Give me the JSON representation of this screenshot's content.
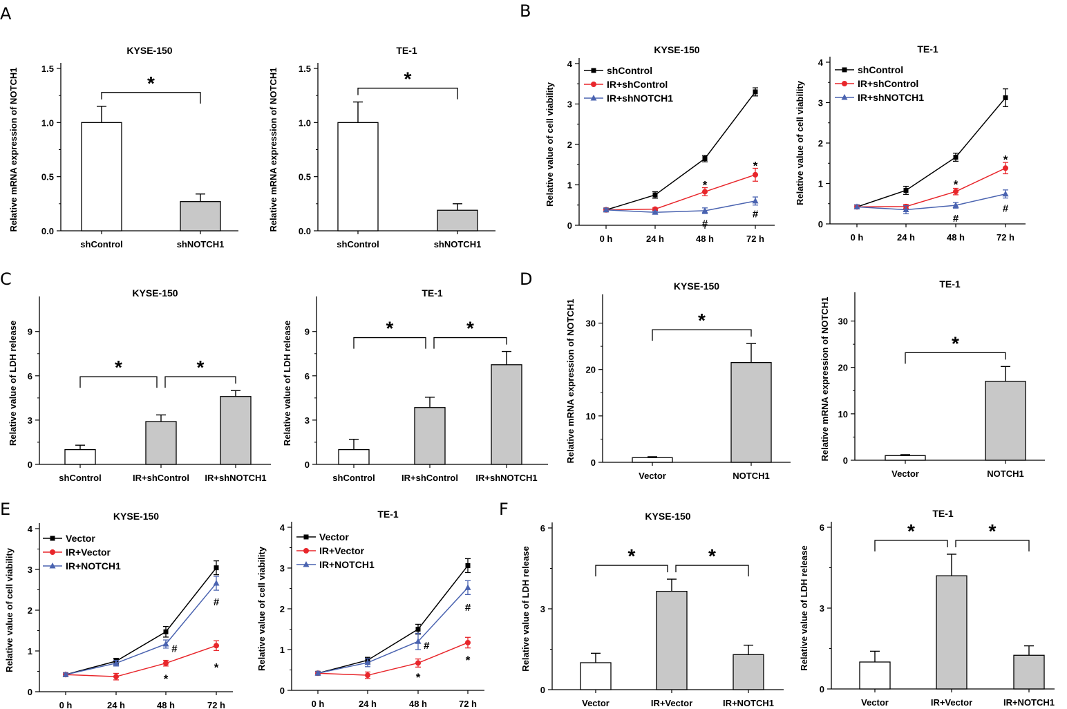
{
  "colors": {
    "black": "#000000",
    "red": "#e8262b",
    "blue": "#4a63b0",
    "gray_bar": "#c8c8c8",
    "white_bar": "#ffffff"
  },
  "panel_labels": [
    "A",
    "B",
    "C",
    "D",
    "E",
    "F"
  ],
  "chart_data": [
    {
      "id": "A1",
      "panel": "A",
      "type": "bar",
      "title": "KYSE-150",
      "ylabel": "Relative mRNA expression of NOTCH1",
      "categories": [
        "shControl",
        "shNOTCH1"
      ],
      "values": [
        1.0,
        0.27
      ],
      "errors": [
        0.15,
        0.07
      ],
      "fills": [
        "white",
        "gray"
      ],
      "ylim": [
        0,
        1.5
      ],
      "yticks": [
        0.0,
        0.5,
        1.0,
        1.5
      ],
      "ytick_labels": [
        "0.0",
        "0.5",
        "1.0",
        "1.5"
      ],
      "significance": [
        {
          "from": 0,
          "to": 1,
          "label": "*"
        }
      ]
    },
    {
      "id": "A2",
      "panel": "A",
      "type": "bar",
      "title": "TE-1",
      "ylabel": "Relative mRNA expression of NOTCH1",
      "categories": [
        "shControl",
        "shNOTCH1"
      ],
      "values": [
        1.0,
        0.19
      ],
      "errors": [
        0.19,
        0.06
      ],
      "fills": [
        "white",
        "gray"
      ],
      "ylim": [
        0,
        1.5
      ],
      "yticks": [
        0.0,
        0.5,
        1.0,
        1.5
      ],
      "ytick_labels": [
        "0.0",
        "0.5",
        "1.0",
        "1.5"
      ],
      "significance": [
        {
          "from": 0,
          "to": 1,
          "label": "*"
        }
      ]
    },
    {
      "id": "B1",
      "panel": "B",
      "type": "line",
      "title": "KYSE-150",
      "ylabel": "Relative value of cell viability",
      "categories": [
        "0 h",
        "24 h",
        "48 h",
        "72 h"
      ],
      "ylim": [
        0,
        4
      ],
      "yticks": [
        0,
        1,
        2,
        3,
        4
      ],
      "ytick_labels": [
        "0",
        "1",
        "2",
        "3",
        "4"
      ],
      "series": [
        {
          "name": "shControl",
          "color": "#000000",
          "marker": "square",
          "values": [
            0.38,
            0.75,
            1.65,
            3.3
          ],
          "errors": [
            0.04,
            0.08,
            0.08,
            0.1
          ]
        },
        {
          "name": "IR+shControl",
          "color": "#e8262b",
          "marker": "circle",
          "values": [
            0.38,
            0.4,
            0.83,
            1.25
          ],
          "errors": [
            0.04,
            0.03,
            0.1,
            0.16
          ]
        },
        {
          "name": "IR+shNOTCH1",
          "color": "#4a63b0",
          "marker": "triangle",
          "values": [
            0.38,
            0.32,
            0.36,
            0.6
          ],
          "errors": [
            0.04,
            0.03,
            0.07,
            0.1
          ]
        }
      ],
      "annotations": [
        {
          "label": "*",
          "x": 2,
          "y": 1.0
        },
        {
          "label": "*",
          "x": 3,
          "y": 1.48
        },
        {
          "label": "#",
          "x": 2,
          "y": 0.06
        },
        {
          "label": "#",
          "x": 3,
          "y": 0.3
        }
      ]
    },
    {
      "id": "B2",
      "panel": "B",
      "type": "line",
      "title": "TE-1",
      "ylabel": "Relative value of cell viability",
      "categories": [
        "0 h",
        "24 h",
        "48 h",
        "72 h"
      ],
      "ylim": [
        0,
        4
      ],
      "yticks": [
        0,
        1,
        2,
        3,
        4
      ],
      "ytick_labels": [
        "0",
        "1",
        "2",
        "3",
        "4"
      ],
      "series": [
        {
          "name": "shControl",
          "color": "#000000",
          "marker": "square",
          "values": [
            0.42,
            0.83,
            1.65,
            3.12
          ],
          "errors": [
            0.05,
            0.1,
            0.1,
            0.22
          ]
        },
        {
          "name": "IR+shControl",
          "color": "#e8262b",
          "marker": "circle",
          "values": [
            0.42,
            0.43,
            0.8,
            1.38
          ],
          "errors": [
            0.05,
            0.05,
            0.08,
            0.14
          ]
        },
        {
          "name": "IR+shNOTCH1",
          "color": "#4a63b0",
          "marker": "triangle",
          "values": [
            0.42,
            0.35,
            0.46,
            0.74
          ],
          "errors": [
            0.05,
            0.1,
            0.07,
            0.1
          ]
        }
      ],
      "annotations": [
        {
          "label": "*",
          "x": 2,
          "y": 0.98
        },
        {
          "label": "*",
          "x": 3,
          "y": 1.6
        },
        {
          "label": "#",
          "x": 2,
          "y": 0.15
        },
        {
          "label": "#",
          "x": 3,
          "y": 0.4
        }
      ]
    },
    {
      "id": "C1",
      "panel": "C",
      "type": "bar",
      "title": "KYSE-150",
      "ylabel": "Relative value of LDH release",
      "categories": [
        "shControl",
        "IR+shControl",
        "IR+shNOTCH1"
      ],
      "values": [
        1.0,
        2.9,
        4.6
      ],
      "errors": [
        0.3,
        0.45,
        0.4
      ],
      "fills": [
        "white",
        "gray",
        "gray"
      ],
      "ylim": [
        0,
        11
      ],
      "yticks": [
        0,
        3,
        6,
        9
      ],
      "ytick_labels": [
        "0",
        "3",
        "6",
        "9"
      ],
      "significance": [
        {
          "from": 0,
          "to": 1,
          "label": "*"
        },
        {
          "from": 1,
          "to": 2,
          "label": "*"
        }
      ]
    },
    {
      "id": "C2",
      "panel": "C",
      "type": "bar",
      "title": "TE-1",
      "ylabel": "Relative value of LDH release",
      "categories": [
        "shControl",
        "IR+shControl",
        "IR+shNOTCH1"
      ],
      "values": [
        1.0,
        3.85,
        6.75
      ],
      "errors": [
        0.7,
        0.7,
        0.9
      ],
      "fills": [
        "white",
        "gray",
        "gray"
      ],
      "ylim": [
        0,
        11
      ],
      "yticks": [
        0,
        3,
        6,
        9
      ],
      "ytick_labels": [
        "0",
        "3",
        "6",
        "9"
      ],
      "significance": [
        {
          "from": 0,
          "to": 1,
          "label": "*"
        },
        {
          "from": 1,
          "to": 2,
          "label": "*"
        }
      ]
    },
    {
      "id": "D1",
      "panel": "D",
      "type": "bar",
      "title": "KYSE-150",
      "ylabel": "Relative mRNA expression of NOTCH1",
      "categories": [
        "Vector",
        "NOTCH1"
      ],
      "values": [
        1.0,
        21.5
      ],
      "errors": [
        0.2,
        4.1
      ],
      "fills": [
        "white",
        "gray"
      ],
      "ylim": [
        0,
        35
      ],
      "yticks": [
        0,
        10,
        20,
        30
      ],
      "ytick_labels": [
        "0",
        "10",
        "20",
        "30"
      ],
      "significance": [
        {
          "from": 0,
          "to": 1,
          "label": "*"
        }
      ]
    },
    {
      "id": "D2",
      "panel": "D",
      "type": "bar",
      "title": "TE-1",
      "ylabel": "Relative mRNA expression of NOTCH1",
      "categories": [
        "Vector",
        "NOTCH1"
      ],
      "values": [
        1.0,
        17.0
      ],
      "errors": [
        0.2,
        3.2
      ],
      "fills": [
        "white",
        "gray"
      ],
      "ylim": [
        0,
        35
      ],
      "yticks": [
        0,
        10,
        20,
        30
      ],
      "ytick_labels": [
        "0",
        "10",
        "20",
        "30"
      ],
      "significance": [
        {
          "from": 0,
          "to": 1,
          "label": "*"
        }
      ]
    },
    {
      "id": "E1",
      "panel": "E",
      "type": "line",
      "title": "KYSE-150",
      "ylabel": "Relative value of cell viability",
      "categories": [
        "0 h",
        "24 h",
        "48 h",
        "72 h"
      ],
      "ylim": [
        0,
        4
      ],
      "yticks": [
        0,
        1,
        2,
        3,
        4
      ],
      "ytick_labels": [
        "0",
        "1",
        "2",
        "3",
        "4"
      ],
      "series": [
        {
          "name": "Vector",
          "color": "#000000",
          "marker": "square",
          "values": [
            0.42,
            0.75,
            1.47,
            3.04
          ],
          "errors": [
            0.04,
            0.07,
            0.13,
            0.17
          ]
        },
        {
          "name": "IR+Vector",
          "color": "#e8262b",
          "marker": "circle",
          "values": [
            0.42,
            0.37,
            0.7,
            1.13
          ],
          "errors": [
            0.04,
            0.08,
            0.07,
            0.12
          ]
        },
        {
          "name": "IR+NOTCH1",
          "color": "#4a63b0",
          "marker": "triangle",
          "values": [
            0.42,
            0.7,
            1.17,
            2.66
          ],
          "errors": [
            0.04,
            0.07,
            0.1,
            0.17
          ]
        }
      ],
      "annotations": [
        {
          "label": "#",
          "x": 2.17,
          "y": 1.08
        },
        {
          "label": "#",
          "x": 3,
          "y": 2.22
        },
        {
          "label": "*",
          "x": 2,
          "y": 0.32
        },
        {
          "label": "*",
          "x": 3,
          "y": 0.6
        }
      ]
    },
    {
      "id": "E2",
      "panel": "E",
      "type": "line",
      "title": "TE-1",
      "ylabel": "Relative value of cell viability",
      "categories": [
        "0 h",
        "24 h",
        "48 h",
        "72 h"
      ],
      "ylim": [
        0,
        4
      ],
      "yticks": [
        0,
        1,
        2,
        3,
        4
      ],
      "ytick_labels": [
        "0",
        "1",
        "2",
        "3",
        "4"
      ],
      "series": [
        {
          "name": "Vector",
          "color": "#000000",
          "marker": "square",
          "values": [
            0.42,
            0.74,
            1.5,
            3.06
          ],
          "errors": [
            0.04,
            0.07,
            0.12,
            0.17
          ]
        },
        {
          "name": "IR+Vector",
          "color": "#e8262b",
          "marker": "circle",
          "values": [
            0.42,
            0.37,
            0.67,
            1.17
          ],
          "errors": [
            0.04,
            0.08,
            0.1,
            0.13
          ]
        },
        {
          "name": "IR+NOTCH1",
          "color": "#4a63b0",
          "marker": "triangle",
          "values": [
            0.42,
            0.68,
            1.2,
            2.52
          ],
          "errors": [
            0.04,
            0.1,
            0.2,
            0.17
          ]
        }
      ],
      "annotations": [
        {
          "label": "#",
          "x": 2.17,
          "y": 1.12
        },
        {
          "label": "#",
          "x": 3,
          "y": 2.05
        },
        {
          "label": "*",
          "x": 2,
          "y": 0.32
        },
        {
          "label": "*",
          "x": 3,
          "y": 0.75
        }
      ]
    },
    {
      "id": "F1",
      "panel": "F",
      "type": "bar",
      "title": "KYSE-150",
      "ylabel": "Relative value of LDH release",
      "categories": [
        "Vector",
        "IR+Vector",
        "IR+NOTCH1"
      ],
      "values": [
        1.0,
        3.65,
        1.3
      ],
      "errors": [
        0.35,
        0.45,
        0.35
      ],
      "fills": [
        "white",
        "gray",
        "gray"
      ],
      "ylim": [
        0,
        6
      ],
      "yticks": [
        0,
        3,
        6
      ],
      "ytick_labels": [
        "0",
        "3",
        "6"
      ],
      "significance": [
        {
          "from": 0,
          "to": 1,
          "label": "*"
        },
        {
          "from": 1,
          "to": 2,
          "label": "*"
        }
      ]
    },
    {
      "id": "F2",
      "panel": "F",
      "type": "bar",
      "title": "TE-1",
      "ylabel": "Relative value of LDH release",
      "categories": [
        "Vector",
        "IR+Vector",
        "IR+NOTCH1"
      ],
      "values": [
        1.0,
        4.2,
        1.25
      ],
      "errors": [
        0.4,
        0.8,
        0.35
      ],
      "fills": [
        "white",
        "gray",
        "gray"
      ],
      "ylim": [
        0,
        6
      ],
      "yticks": [
        0,
        3,
        6
      ],
      "ytick_labels": [
        "0",
        "3",
        "6"
      ],
      "significance": [
        {
          "from": 0,
          "to": 1,
          "label": "*"
        },
        {
          "from": 1,
          "to": 2,
          "label": "*"
        }
      ]
    }
  ]
}
